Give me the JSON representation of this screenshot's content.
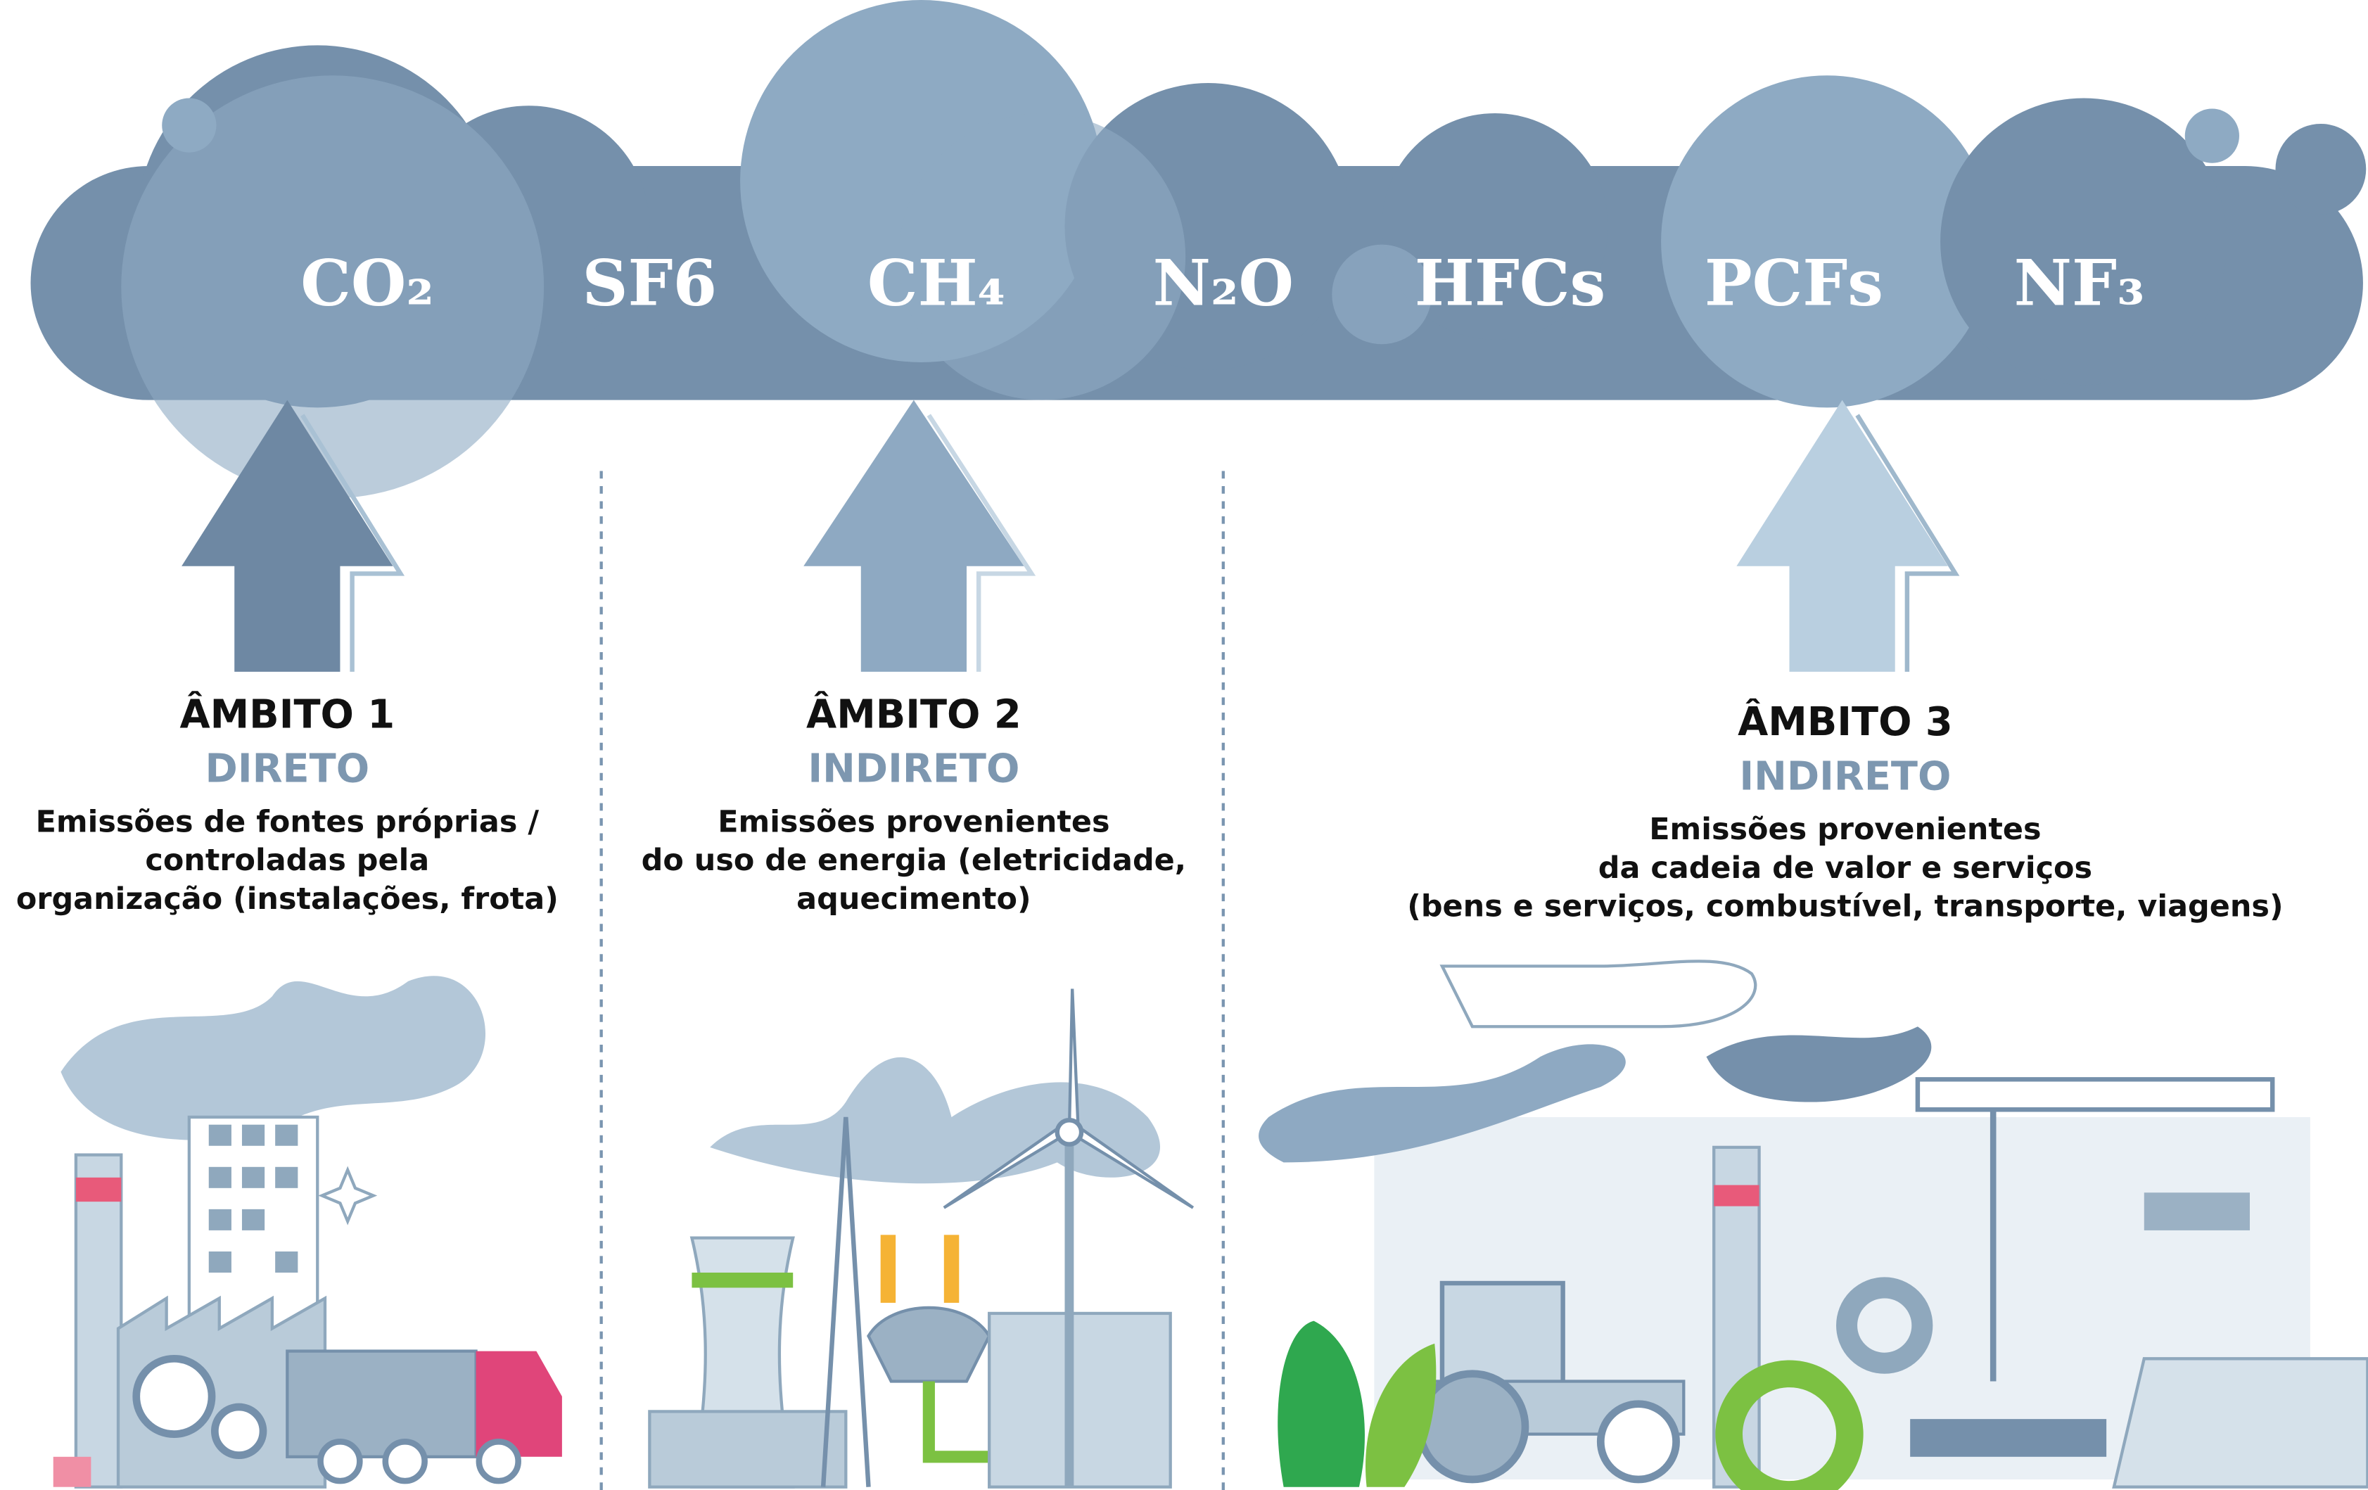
{
  "gases": [
    "CO₂",
    "SF6",
    "CH₄",
    "N₂O",
    "HFCs",
    "PCFs",
    "NF₃"
  ],
  "scopes": [
    {
      "title": "ÂMBITO 1",
      "type": "DIRETO",
      "description": [
        "Emissões de fontes próprias /",
        "controladas pela",
        "organização (instalações, frota)"
      ]
    },
    {
      "title": "ÂMBITO 2",
      "type": "INDIRETO",
      "description": [
        "Emissões provenientes",
        "do uso de energia (eletricidade,",
        "aquecimento)"
      ]
    },
    {
      "title": "ÂMBITO 3",
      "type": "INDIRETO",
      "description": [
        "Emissões provenientes",
        "da cadeia de valor e serviços",
        "(bens e serviços, combustível, transporte, viagens)"
      ]
    }
  ]
}
